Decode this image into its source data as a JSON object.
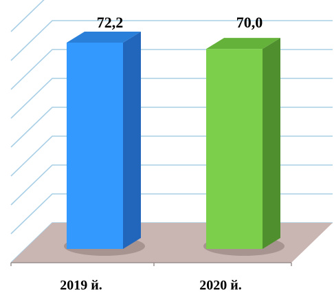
{
  "chart_data": {
    "type": "bar",
    "categories": [
      "2019 й.",
      "2020 й."
    ],
    "values": [
      72.2,
      70.0
    ],
    "value_labels": [
      "72,2",
      "70,0"
    ],
    "colors": [
      "#3399ff",
      "#7ccf4a"
    ],
    "side_colors": [
      "#2266bb",
      "#4f8f2e"
    ],
    "top_colors": [
      "#2a7fd9",
      "#64b23a"
    ],
    "floor_color": "#c9b5b2",
    "grid_color": "#a9cfe6",
    "ylim": [
      0,
      80
    ],
    "grid": true,
    "style": "3d"
  }
}
